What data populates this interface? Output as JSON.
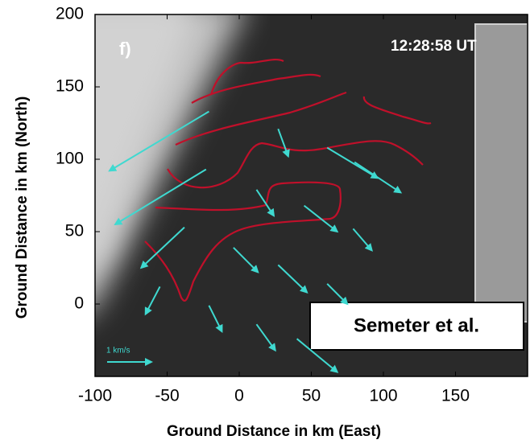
{
  "chart_data": {
    "type": "quiver",
    "panel_label": "f)",
    "timestamp": "12:28:58 UT",
    "annotation": "Semeter et al.",
    "scale_label": "1 km/s",
    "xlabel": "Ground Distance in km (East)",
    "ylabel": "Ground Distance in km (North)",
    "xlim": [
      -100,
      200
    ],
    "ylim": [
      -50,
      200
    ],
    "xticks": [
      -100,
      -50,
      0,
      50,
      100,
      150
    ],
    "yticks": [
      0,
      50,
      100,
      150,
      200
    ],
    "color": "#3fd9d0",
    "x": [
      -21,
      -23,
      -38,
      -55,
      27,
      61,
      80,
      12,
      45,
      79,
      -4,
      27,
      61,
      -21,
      12,
      40
    ],
    "y": [
      133,
      93,
      53,
      12,
      121,
      108,
      98,
      79,
      68,
      52,
      39,
      27,
      14,
      -1,
      -14,
      -24
    ],
    "u": [
      -69,
      -63,
      -30,
      -10,
      7,
      35,
      32,
      12,
      23,
      13,
      17,
      20,
      14,
      9,
      13,
      28
    ],
    "v": [
      -41,
      -38,
      -28,
      -19,
      -19,
      -21,
      -21,
      -18,
      -18,
      -15,
      -17,
      -19,
      -14,
      -18,
      -18,
      -23
    ]
  }
}
